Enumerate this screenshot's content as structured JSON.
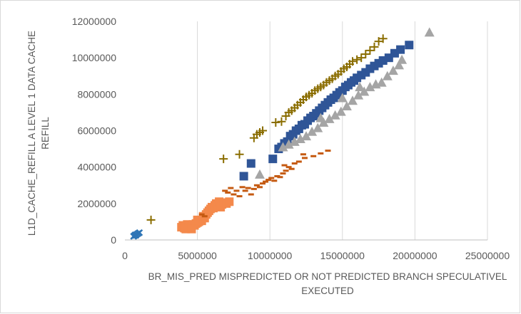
{
  "chart_data": {
    "type": "scatter",
    "title": "",
    "xlabel": "BR_MIS_PRED MISPREDICTED OR NOT PREDICTED BRANCH SPECULATIVELY EXECUTED",
    "xlabel_lines": [
      "BR_MIS_PRED MISPREDICTED OR NOT PREDICTED BRANCH SPECULATIVEL",
      "EXECUTED"
    ],
    "ylabel": "L1D_CACHE_REFILL A LEVEL 1 DATA CACHE REFILL",
    "ylabel_lines": [
      "L1D_CACHE_REFILL A LEVEL 1 DATA CACHE",
      "REFILL"
    ],
    "xlim": [
      0,
      25000000
    ],
    "ylim": [
      0,
      12000000
    ],
    "x_ticks": [
      0,
      5000000,
      10000000,
      15000000,
      20000000,
      25000000
    ],
    "x_tick_labels": [
      "0",
      "5000000",
      "10000000",
      "15000000",
      "20000000",
      "25000000"
    ],
    "y_ticks": [
      0,
      2000000,
      4000000,
      6000000,
      8000000,
      10000000,
      12000000
    ],
    "y_tick_labels": [
      "0",
      "2000000",
      "4000000",
      "6000000",
      "8000000",
      "10000000",
      "12000000"
    ],
    "grid": "vertical",
    "legend": "none",
    "series": [
      {
        "marker": "cross",
        "color": "#2e75b6",
        "x": [
          600000,
          700000,
          800000,
          900000,
          1000000,
          750000,
          650000
        ],
        "y": [
          200000,
          280000,
          300000,
          350000,
          400000,
          250000,
          230000
        ]
      },
      {
        "marker": "square",
        "color": "#f4894b",
        "x": [
          3900000,
          4000000,
          4100000,
          4200000,
          4300000,
          4400000,
          4500000,
          4600000,
          4700000,
          4800000,
          4900000,
          5000000,
          5100000,
          5300000,
          5500000,
          5600000,
          5700000,
          5800000,
          5900000,
          6000000,
          6100000,
          6200000,
          6300000,
          6400000,
          6500000,
          6600000,
          6700000,
          6800000,
          7000000,
          7200000,
          4200000,
          4600000,
          5000000,
          5400000
        ],
        "y": [
          700000,
          800000,
          650000,
          750000,
          850000,
          700000,
          800000,
          750000,
          850000,
          800000,
          900000,
          950000,
          1000000,
          1050000,
          1200000,
          1400000,
          1500000,
          1600000,
          1700000,
          1800000,
          1750000,
          1900000,
          2000000,
          1850000,
          2100000,
          1800000,
          1950000,
          2050000,
          2000000,
          2100000,
          600000,
          600000,
          1100000,
          1300000
        ]
      },
      {
        "marker": "dash",
        "color": "#c55a11",
        "x": [
          5300000,
          5500000,
          6900000,
          7100000,
          7300000,
          7500000,
          7700000,
          7900000,
          8100000,
          8300000,
          8500000,
          8700000,
          8900000,
          9100000,
          9300000,
          9500000,
          9700000,
          9900000,
          10100000,
          10300000,
          10500000,
          10700000,
          10900000,
          11100000,
          11300000,
          11500000,
          11700000,
          12000000,
          12400000,
          13000000,
          13500000,
          14000000,
          11000000,
          12300000
        ],
        "y": [
          1400000,
          1300000,
          2700000,
          2600000,
          2850000,
          2500000,
          2700000,
          2400000,
          2900000,
          2700000,
          2850000,
          2500000,
          2800000,
          3000000,
          2900000,
          3100000,
          3200000,
          3300000,
          3400000,
          3250000,
          3500000,
          3450000,
          3650000,
          3800000,
          4000000,
          3900000,
          4200000,
          4300000,
          4500000,
          4600000,
          4750000,
          4900000,
          4100000,
          4700000
        ]
      },
      {
        "marker": "plus",
        "color": "#8a6d00",
        "x": [
          1800000,
          6800000,
          7900000,
          8900000,
          9100000,
          9300000,
          9500000,
          10400000,
          10800000,
          11100000,
          11300000,
          11500000,
          11700000,
          11900000,
          12100000,
          12300000,
          12500000,
          12700000,
          12900000,
          13100000,
          13300000,
          13500000,
          13700000,
          13900000,
          14100000,
          14300000,
          14500000,
          14700000,
          14900000,
          15100000,
          15300000,
          15500000,
          15700000,
          16000000,
          16300000,
          16600000,
          16900000,
          17200000,
          17500000,
          17800000
        ],
        "y": [
          1100000,
          4450000,
          4700000,
          5600000,
          5800000,
          5900000,
          6000000,
          6450000,
          6500000,
          6800000,
          7000000,
          7100000,
          7250000,
          7400000,
          7550000,
          7700000,
          7850000,
          7950000,
          8050000,
          8200000,
          8300000,
          8400000,
          8500000,
          8650000,
          8750000,
          8850000,
          9000000,
          9100000,
          9250000,
          9400000,
          9500000,
          9650000,
          9800000,
          9900000,
          10000000,
          10200000,
          10400000,
          10600000,
          10900000,
          11050000
        ]
      },
      {
        "marker": "square",
        "color": "#2f5597",
        "x": [
          8200000,
          8700000,
          10200000,
          10600000,
          10800000,
          11000000,
          11200000,
          11400000,
          11600000,
          11800000,
          12000000,
          12200000,
          12400000,
          12600000,
          12800000,
          13000000,
          13200000,
          13400000,
          13600000,
          13800000,
          14000000,
          14200000,
          14400000,
          14600000,
          14800000,
          15000000,
          15200000,
          15400000,
          15600000,
          15800000,
          16000000,
          16300000,
          16600000,
          16900000,
          17200000,
          17500000,
          17800000,
          18200000,
          18600000,
          19000000,
          19600000
        ],
        "y": [
          3500000,
          4200000,
          4450000,
          5000000,
          5100000,
          5300000,
          5400000,
          5700000,
          5800000,
          6000000,
          6100000,
          6300000,
          6350000,
          6550000,
          6700000,
          6800000,
          6950000,
          7100000,
          7250000,
          7400000,
          7550000,
          7700000,
          7800000,
          7950000,
          8100000,
          8200000,
          8400000,
          8500000,
          8650000,
          8750000,
          8900000,
          9050000,
          9200000,
          9400000,
          9550000,
          9700000,
          9850000,
          10000000,
          10250000,
          10450000,
          10700000
        ]
      },
      {
        "marker": "triangle",
        "color": "#a5a5a5",
        "x": [
          9300000,
          10900000,
          11300000,
          11700000,
          12100000,
          12500000,
          12900000,
          13300000,
          13700000,
          14100000,
          14500000,
          14900000,
          15300000,
          15700000,
          16100000,
          16500000,
          16900000,
          17300000,
          17700000,
          18100000,
          18500000,
          18900000,
          19100000,
          21000000,
          15000000,
          16200000,
          13500000
        ],
        "y": [
          3600000,
          5100000,
          5250000,
          5400000,
          5550000,
          5700000,
          5950000,
          6150000,
          6450000,
          6650000,
          6850000,
          7050000,
          7350000,
          7650000,
          7950000,
          8150000,
          8400000,
          8550000,
          8650000,
          9000000,
          9300000,
          9600000,
          9900000,
          11400000,
          7800000,
          8400000,
          6700000
        ]
      }
    ]
  }
}
